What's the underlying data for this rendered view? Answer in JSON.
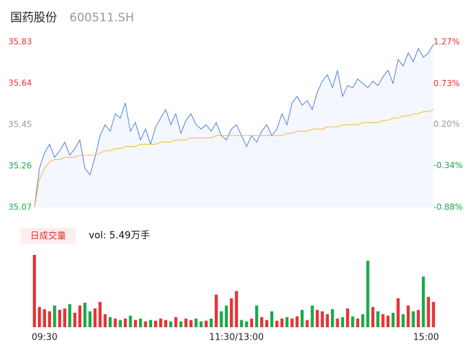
{
  "header": {
    "name": "国药股份",
    "code": "600511.SH"
  },
  "chart_data": {
    "type": "line",
    "categories": [
      "09:30",
      null,
      null,
      null,
      null,
      null,
      null,
      null,
      null,
      null,
      null,
      null,
      null,
      null,
      null,
      null,
      null,
      null,
      null,
      null,
      null,
      null,
      null,
      null,
      null,
      null,
      null,
      null,
      null,
      null,
      null,
      null,
      null,
      null,
      null,
      null,
      null,
      null,
      null,
      null,
      "11:30/13:00",
      null,
      null,
      null,
      null,
      null,
      null,
      null,
      null,
      null,
      null,
      null,
      null,
      null,
      null,
      null,
      null,
      null,
      null,
      null,
      null,
      null,
      null,
      null,
      null,
      null,
      null,
      null,
      null,
      null,
      null,
      null,
      null,
      null,
      null,
      null,
      null,
      null,
      null,
      "15:00"
    ],
    "series": [
      {
        "name": "price",
        "color": "#4a7ee0",
        "values": [
          35.07,
          35.25,
          35.32,
          35.36,
          35.3,
          35.33,
          35.37,
          35.31,
          35.34,
          35.38,
          35.25,
          35.22,
          35.3,
          35.4,
          35.45,
          35.42,
          35.5,
          35.48,
          35.55,
          35.42,
          35.46,
          35.38,
          35.43,
          35.36,
          35.44,
          35.48,
          35.52,
          35.45,
          35.5,
          35.41,
          35.47,
          35.5,
          35.45,
          35.43,
          35.45,
          35.42,
          35.46,
          35.4,
          35.38,
          35.43,
          35.45,
          35.4,
          35.35,
          35.4,
          35.37,
          35.42,
          35.45,
          35.4,
          35.43,
          35.5,
          35.45,
          35.55,
          35.58,
          35.54,
          35.56,
          35.52,
          35.6,
          35.65,
          35.68,
          35.62,
          35.7,
          35.58,
          35.63,
          35.62,
          35.66,
          35.64,
          35.62,
          35.65,
          35.63,
          35.67,
          35.7,
          35.64,
          35.75,
          35.72,
          35.78,
          35.74,
          35.8,
          35.76,
          35.78,
          35.82
        ]
      },
      {
        "name": "avg",
        "color": "#f5b82e",
        "values": [
          35.07,
          35.2,
          35.25,
          35.28,
          35.29,
          35.29,
          35.3,
          35.3,
          35.3,
          35.31,
          35.31,
          35.31,
          35.31,
          35.32,
          35.33,
          35.33,
          35.34,
          35.34,
          35.35,
          35.35,
          35.35,
          35.36,
          35.36,
          35.36,
          35.36,
          35.37,
          35.37,
          35.37,
          35.38,
          35.38,
          35.38,
          35.39,
          35.39,
          35.39,
          35.39,
          35.39,
          35.4,
          35.4,
          35.4,
          35.4,
          35.4,
          35.4,
          35.4,
          35.4,
          35.4,
          35.4,
          35.4,
          35.4,
          35.4,
          35.4,
          35.41,
          35.41,
          35.42,
          35.42,
          35.42,
          35.43,
          35.43,
          35.43,
          35.44,
          35.44,
          35.44,
          35.45,
          35.45,
          35.45,
          35.45,
          35.46,
          35.46,
          35.46,
          35.46,
          35.47,
          35.47,
          35.48,
          35.48,
          35.49,
          35.49,
          35.5,
          35.5,
          35.51,
          35.51,
          35.52
        ]
      }
    ],
    "ylim": [
      35.07,
      35.83
    ],
    "yticks": [
      35.83,
      35.64,
      35.45,
      35.26,
      35.07
    ],
    "y2lim": [
      -0.88,
      1.27
    ],
    "y2ticks": [
      {
        "value": 1.27,
        "label": "1.27%"
      },
      {
        "value": 0.73,
        "label": "0.73%"
      },
      {
        "value": 0.2,
        "label": "0.20%"
      },
      {
        "value": -0.34,
        "label": "-0.34%"
      },
      {
        "value": -0.88,
        "label": "-0.88%"
      }
    ],
    "volume": {
      "name": "日成交量",
      "summary": "vol: 5.49万手",
      "up_color": "#e63232",
      "down_color": "#1aa84a",
      "values": [
        100,
        28,
        25,
        22,
        30,
        24,
        26,
        32,
        20,
        30,
        34,
        22,
        26,
        35,
        18,
        14,
        12,
        10,
        12,
        16,
        10,
        12,
        8,
        10,
        9,
        12,
        10,
        8,
        14,
        8,
        12,
        10,
        12,
        8,
        9,
        12,
        45,
        22,
        30,
        40,
        50,
        10,
        8,
        12,
        30,
        14,
        10,
        22,
        9,
        12,
        14,
        12,
        15,
        24,
        10,
        30,
        24,
        22,
        18,
        25,
        12,
        14,
        26,
        15,
        12,
        18,
        92,
        28,
        22,
        18,
        16,
        20,
        40,
        18,
        30,
        22,
        24,
        70,
        42,
        35
      ]
    }
  }
}
